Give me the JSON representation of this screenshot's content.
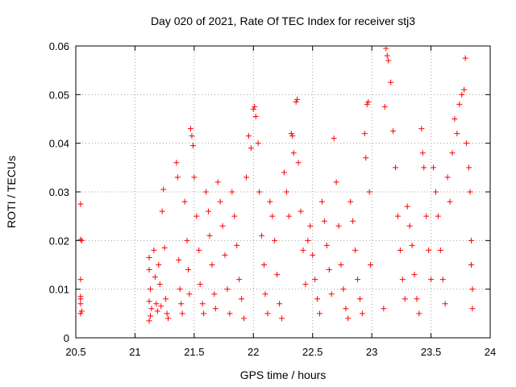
{
  "chart_data": {
    "type": "scatter",
    "title": "Day 020 of 2021, Rate Of TEC Index for receiver stj3",
    "xlabel": "GPS time / hours",
    "ylabel": "ROTI / TECUs",
    "xlim": [
      20.5,
      24
    ],
    "ylim": [
      0,
      0.06
    ],
    "x_ticks": [
      20.5,
      21,
      21.5,
      22,
      22.5,
      23,
      23.5,
      24
    ],
    "x_tick_labels": [
      "20.5",
      "21",
      "21.5",
      "22",
      "22.5",
      "23",
      "23.5",
      "24"
    ],
    "y_ticks": [
      0,
      0.01,
      0.02,
      0.03,
      0.04,
      0.05,
      0.06
    ],
    "y_tick_labels": [
      "0",
      "0.01",
      "0.02",
      "0.03",
      "0.04",
      "0.05",
      "0.06"
    ],
    "grid": true,
    "marker": "+",
    "series": [
      {
        "name": "ROTI",
        "color": "#ff0000",
        "points": [
          [
            20.54,
            0.0275
          ],
          [
            20.54,
            0.0202
          ],
          [
            20.55,
            0.02
          ],
          [
            20.54,
            0.012
          ],
          [
            20.54,
            0.0085
          ],
          [
            20.54,
            0.008
          ],
          [
            20.54,
            0.007
          ],
          [
            20.55,
            0.0055
          ],
          [
            20.54,
            0.005
          ],
          [
            21.12,
            0.0165
          ],
          [
            21.12,
            0.014
          ],
          [
            21.13,
            0.01
          ],
          [
            21.12,
            0.0075
          ],
          [
            21.14,
            0.006
          ],
          [
            21.13,
            0.0045
          ],
          [
            21.12,
            0.0035
          ],
          [
            21.16,
            0.018
          ],
          [
            21.17,
            0.0125
          ],
          [
            21.18,
            0.007
          ],
          [
            21.19,
            0.0055
          ],
          [
            21.2,
            0.015
          ],
          [
            21.21,
            0.011
          ],
          [
            21.22,
            0.0065
          ],
          [
            21.23,
            0.026
          ],
          [
            21.24,
            0.0305
          ],
          [
            21.25,
            0.0185
          ],
          [
            21.26,
            0.008
          ],
          [
            21.27,
            0.005
          ],
          [
            21.28,
            0.004
          ],
          [
            21.35,
            0.036
          ],
          [
            21.36,
            0.033
          ],
          [
            21.37,
            0.016
          ],
          [
            21.38,
            0.01
          ],
          [
            21.39,
            0.007
          ],
          [
            21.4,
            0.005
          ],
          [
            21.42,
            0.028
          ],
          [
            21.44,
            0.02
          ],
          [
            21.45,
            0.014
          ],
          [
            21.46,
            0.009
          ],
          [
            21.47,
            0.043
          ],
          [
            21.48,
            0.0415
          ],
          [
            21.49,
            0.0395
          ],
          [
            21.5,
            0.033
          ],
          [
            21.52,
            0.025
          ],
          [
            21.54,
            0.018
          ],
          [
            21.55,
            0.011
          ],
          [
            21.57,
            0.007
          ],
          [
            21.58,
            0.005
          ],
          [
            21.6,
            0.03
          ],
          [
            21.62,
            0.026
          ],
          [
            21.63,
            0.021
          ],
          [
            21.65,
            0.015
          ],
          [
            21.67,
            0.009
          ],
          [
            21.68,
            0.006
          ],
          [
            21.7,
            0.032
          ],
          [
            21.72,
            0.028
          ],
          [
            21.74,
            0.023
          ],
          [
            21.76,
            0.017
          ],
          [
            21.78,
            0.01
          ],
          [
            21.8,
            0.005
          ],
          [
            21.82,
            0.03
          ],
          [
            21.84,
            0.025
          ],
          [
            21.86,
            0.019
          ],
          [
            21.88,
            0.012
          ],
          [
            21.9,
            0.008
          ],
          [
            21.92,
            0.004
          ],
          [
            21.94,
            0.033
          ],
          [
            21.96,
            0.0415
          ],
          [
            21.98,
            0.039
          ],
          [
            22.0,
            0.047
          ],
          [
            22.01,
            0.0475
          ],
          [
            22.02,
            0.0455
          ],
          [
            22.04,
            0.04
          ],
          [
            22.05,
            0.03
          ],
          [
            22.07,
            0.021
          ],
          [
            22.09,
            0.015
          ],
          [
            22.1,
            0.009
          ],
          [
            22.12,
            0.005
          ],
          [
            22.14,
            0.028
          ],
          [
            22.16,
            0.025
          ],
          [
            22.18,
            0.02
          ],
          [
            22.2,
            0.013
          ],
          [
            22.22,
            0.007
          ],
          [
            22.24,
            0.004
          ],
          [
            22.26,
            0.034
          ],
          [
            22.28,
            0.03
          ],
          [
            22.3,
            0.025
          ],
          [
            22.32,
            0.042
          ],
          [
            22.33,
            0.0415
          ],
          [
            22.34,
            0.038
          ],
          [
            22.36,
            0.0485
          ],
          [
            22.37,
            0.049
          ],
          [
            22.38,
            0.036
          ],
          [
            22.4,
            0.026
          ],
          [
            22.42,
            0.018
          ],
          [
            22.44,
            0.011
          ],
          [
            22.46,
            0.02
          ],
          [
            22.48,
            0.023
          ],
          [
            22.5,
            0.017
          ],
          [
            22.52,
            0.012
          ],
          [
            22.54,
            0.008
          ],
          [
            22.56,
            0.005
          ],
          [
            22.58,
            0.028
          ],
          [
            22.6,
            0.024
          ],
          [
            22.62,
            0.019
          ],
          [
            22.64,
            0.014
          ],
          [
            22.66,
            0.009
          ],
          [
            22.68,
            0.041
          ],
          [
            22.7,
            0.032
          ],
          [
            22.72,
            0.023
          ],
          [
            22.74,
            0.015
          ],
          [
            22.76,
            0.01
          ],
          [
            22.78,
            0.006
          ],
          [
            22.8,
            0.004
          ],
          [
            22.82,
            0.028
          ],
          [
            22.84,
            0.024
          ],
          [
            22.86,
            0.018
          ],
          [
            22.88,
            0.012
          ],
          [
            22.9,
            0.008
          ],
          [
            22.92,
            0.005
          ],
          [
            22.94,
            0.042
          ],
          [
            22.95,
            0.037
          ],
          [
            22.96,
            0.048
          ],
          [
            22.97,
            0.0485
          ],
          [
            22.98,
            0.03
          ],
          [
            22.99,
            0.015
          ],
          [
            23.1,
            0.006
          ],
          [
            23.11,
            0.0475
          ],
          [
            23.12,
            0.0595
          ],
          [
            23.13,
            0.058
          ],
          [
            23.14,
            0.057
          ],
          [
            23.16,
            0.0525
          ],
          [
            23.18,
            0.0425
          ],
          [
            23.2,
            0.035
          ],
          [
            23.22,
            0.025
          ],
          [
            23.24,
            0.018
          ],
          [
            23.26,
            0.012
          ],
          [
            23.28,
            0.008
          ],
          [
            23.3,
            0.027
          ],
          [
            23.32,
            0.023
          ],
          [
            23.34,
            0.019
          ],
          [
            23.36,
            0.013
          ],
          [
            23.38,
            0.008
          ],
          [
            23.4,
            0.005
          ],
          [
            23.42,
            0.043
          ],
          [
            23.43,
            0.038
          ],
          [
            23.44,
            0.035
          ],
          [
            23.46,
            0.025
          ],
          [
            23.48,
            0.018
          ],
          [
            23.5,
            0.012
          ],
          [
            23.52,
            0.035
          ],
          [
            23.54,
            0.03
          ],
          [
            23.56,
            0.025
          ],
          [
            23.58,
            0.018
          ],
          [
            23.6,
            0.012
          ],
          [
            23.62,
            0.007
          ],
          [
            23.64,
            0.033
          ],
          [
            23.66,
            0.028
          ],
          [
            23.68,
            0.038
          ],
          [
            23.7,
            0.045
          ],
          [
            23.72,
            0.042
          ],
          [
            23.74,
            0.048
          ],
          [
            23.76,
            0.05
          ],
          [
            23.78,
            0.051
          ],
          [
            23.79,
            0.0575
          ],
          [
            23.8,
            0.04
          ],
          [
            23.82,
            0.035
          ],
          [
            23.83,
            0.03
          ],
          [
            23.84,
            0.02
          ],
          [
            23.84,
            0.015
          ],
          [
            23.85,
            0.01
          ],
          [
            23.85,
            0.006
          ]
        ]
      }
    ]
  }
}
